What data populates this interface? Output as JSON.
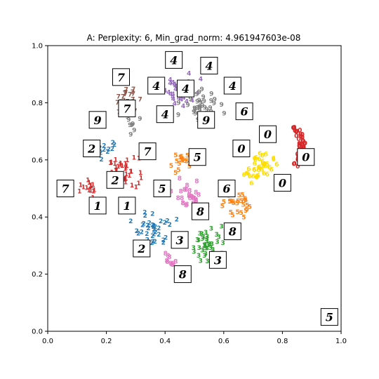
{
  "chart_data": {
    "type": "scatter",
    "title": "A: Perplexity: 6, Min_grad_norm: 4.961947603e-08",
    "xlabel": "",
    "ylabel": "",
    "xlim": [
      0.0,
      1.0
    ],
    "ylim": [
      0.0,
      1.0
    ],
    "xticks": [
      "0.0",
      "0.2",
      "0.4",
      "0.6",
      "0.8",
      "1.0"
    ],
    "yticks": [
      "0.0",
      "0.2",
      "0.4",
      "0.6",
      "0.8",
      "1.0"
    ],
    "grid": false,
    "colors": {
      "0": "#d62728",
      "1": "#d62728",
      "2": "#1f77b4",
      "3": "#2ca02c",
      "4": "#9467bd",
      "5": "#ff7f0e",
      "6": "#ffdd00",
      "7": "#8c564b",
      "8": "#e377c2",
      "9": "#7f7f7f"
    },
    "clusters": [
      {
        "label": "0",
        "cx": 0.82,
        "cy": 0.64,
        "spread": 0.06,
        "n": 40,
        "shape": "arc"
      },
      {
        "label": "1",
        "cx": 0.26,
        "cy": 0.55,
        "spread": 0.05,
        "n": 40
      },
      {
        "label": "1",
        "cx": 0.14,
        "cy": 0.49,
        "spread": 0.03,
        "n": 15
      },
      {
        "label": "2",
        "cx": 0.36,
        "cy": 0.35,
        "spread": 0.06,
        "n": 35
      },
      {
        "label": "2",
        "cx": 0.2,
        "cy": 0.63,
        "spread": 0.04,
        "n": 12
      },
      {
        "label": "3",
        "cx": 0.55,
        "cy": 0.3,
        "spread": 0.06,
        "n": 40
      },
      {
        "label": "4",
        "cx": 0.46,
        "cy": 0.84,
        "spread": 0.06,
        "n": 35
      },
      {
        "label": "5",
        "cx": 0.63,
        "cy": 0.44,
        "spread": 0.05,
        "n": 25
      },
      {
        "label": "5",
        "cx": 0.46,
        "cy": 0.58,
        "spread": 0.04,
        "n": 15
      },
      {
        "label": "6",
        "cx": 0.72,
        "cy": 0.57,
        "spread": 0.05,
        "n": 40
      },
      {
        "label": "7",
        "cx": 0.27,
        "cy": 0.8,
        "spread": 0.04,
        "n": 30
      },
      {
        "label": "8",
        "cx": 0.48,
        "cy": 0.46,
        "spread": 0.05,
        "n": 30
      },
      {
        "label": "8",
        "cx": 0.42,
        "cy": 0.24,
        "spread": 0.03,
        "n": 10
      },
      {
        "label": "9",
        "cx": 0.52,
        "cy": 0.79,
        "spread": 0.06,
        "n": 35
      },
      {
        "label": "9",
        "cx": 0.28,
        "cy": 0.72,
        "spread": 0.03,
        "n": 8
      }
    ],
    "thumbnails": [
      {
        "label": "4",
        "x": 0.43,
        "y": 0.95
      },
      {
        "label": "4",
        "x": 0.55,
        "y": 0.93
      },
      {
        "label": "7",
        "x": 0.25,
        "y": 0.89
      },
      {
        "label": "4",
        "x": 0.37,
        "y": 0.86
      },
      {
        "label": "4",
        "x": 0.47,
        "y": 0.85
      },
      {
        "label": "4",
        "x": 0.63,
        "y": 0.86
      },
      {
        "label": "7",
        "x": 0.27,
        "y": 0.78
      },
      {
        "label": "4",
        "x": 0.4,
        "y": 0.76
      },
      {
        "label": "9",
        "x": 0.54,
        "y": 0.74
      },
      {
        "label": "6",
        "x": 0.67,
        "y": 0.77
      },
      {
        "label": "9",
        "x": 0.17,
        "y": 0.74
      },
      {
        "label": "0",
        "x": 0.75,
        "y": 0.69
      },
      {
        "label": "0",
        "x": 0.88,
        "y": 0.61
      },
      {
        "label": "2",
        "x": 0.15,
        "y": 0.64
      },
      {
        "label": "7",
        "x": 0.34,
        "y": 0.63
      },
      {
        "label": "5",
        "x": 0.51,
        "y": 0.61
      },
      {
        "label": "0",
        "x": 0.66,
        "y": 0.64
      },
      {
        "label": "2",
        "x": 0.23,
        "y": 0.53
      },
      {
        "label": "7",
        "x": 0.06,
        "y": 0.5
      },
      {
        "label": "5",
        "x": 0.39,
        "y": 0.5
      },
      {
        "label": "6",
        "x": 0.61,
        "y": 0.5
      },
      {
        "label": "0",
        "x": 0.8,
        "y": 0.52
      },
      {
        "label": "1",
        "x": 0.17,
        "y": 0.44
      },
      {
        "label": "1",
        "x": 0.27,
        "y": 0.44
      },
      {
        "label": "8",
        "x": 0.52,
        "y": 0.42
      },
      {
        "label": "8",
        "x": 0.63,
        "y": 0.35
      },
      {
        "label": "3",
        "x": 0.45,
        "y": 0.32
      },
      {
        "label": "2",
        "x": 0.32,
        "y": 0.29
      },
      {
        "label": "3",
        "x": 0.58,
        "y": 0.25
      },
      {
        "label": "8",
        "x": 0.46,
        "y": 0.2
      },
      {
        "label": "5",
        "x": 0.96,
        "y": 0.05
      }
    ]
  }
}
